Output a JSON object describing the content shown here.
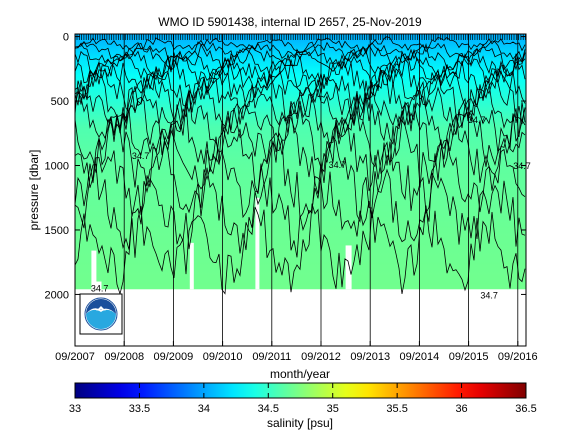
{
  "chart_data": {
    "type": "heatmap",
    "title": "WMO ID 5901438, internal ID 2657, 25-Nov-2019",
    "xlabel": "month/year",
    "ylabel": "pressure [dbar]",
    "x_ticks": [
      "09/2007",
      "09/2008",
      "09/2009",
      "09/2010",
      "09/2011",
      "09/2012",
      "09/2013",
      "09/2014",
      "09/2015",
      "09/2016"
    ],
    "y_ticks": [
      0,
      500,
      1000,
      1500,
      2000
    ],
    "xlim": [
      "2007-09",
      "2016-11"
    ],
    "ylim": [
      2400,
      -20
    ],
    "y_reversed": true,
    "colorbar": {
      "label": "salinity [psu]",
      "ticks": [
        33,
        33.5,
        34,
        34.5,
        35,
        35.5,
        36,
        36.5
      ],
      "range": [
        33,
        36.5
      ],
      "colormap": "jet"
    },
    "field_summary": {
      "salinity_at_pressure": [
        {
          "pressure": 0,
          "salinity": 34.05
        },
        {
          "pressure": 150,
          "salinity": 34.2
        },
        {
          "pressure": 300,
          "salinity": 34.33
        },
        {
          "pressure": 500,
          "salinity": 34.45
        },
        {
          "pressure": 700,
          "salinity": 34.58
        },
        {
          "pressure": 1000,
          "salinity": 34.64
        },
        {
          "pressure": 1500,
          "salinity": 34.68
        },
        {
          "pressure": 1950,
          "salinity": 34.7
        }
      ],
      "profile_max_pressure": 1960
    },
    "contour_labels": [
      {
        "text": "34.7",
        "date": "2009-01",
        "pressure": 920
      },
      {
        "text": "34.7",
        "date": "2013-01",
        "pressure": 990
      },
      {
        "text": "34.7",
        "date": "2015-11",
        "pressure": 640
      },
      {
        "text": "34.7",
        "date": "2016-11",
        "pressure": 995
      },
      {
        "text": "34.7",
        "date": "2008-03",
        "pressure": 1945
      },
      {
        "text": "34.7",
        "date": "2016-02",
        "pressure": 2000
      }
    ],
    "logo": "noaa-logo",
    "colors": {
      "no_data": "#ffffff",
      "contour": "#000000"
    }
  }
}
